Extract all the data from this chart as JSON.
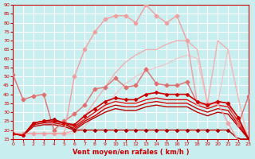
{
  "xlabel": "Vent moyen/en rafales ( km/h )",
  "background_color": "#c8eef0",
  "grid_color": "#ffffff",
  "x": [
    0,
    1,
    2,
    3,
    4,
    5,
    6,
    7,
    8,
    9,
    10,
    11,
    12,
    13,
    14,
    15,
    16,
    17,
    18,
    19,
    20,
    21,
    22,
    23
  ],
  "lines": [
    {
      "y": [
        18,
        18,
        18,
        18,
        18,
        18,
        50,
        65,
        75,
        82,
        84,
        84,
        80,
        90,
        84,
        80,
        84,
        70,
        35,
        35,
        35,
        24,
        14,
        14
      ],
      "color": "#f0a0a0",
      "lw": 1.0,
      "marker": "D",
      "ms": 2.5,
      "zorder": 5
    },
    {
      "y": [
        18,
        18,
        18,
        18,
        18,
        18,
        20,
        28,
        36,
        44,
        52,
        58,
        62,
        65,
        65,
        68,
        70,
        70,
        65,
        35,
        70,
        65,
        38,
        14
      ],
      "color": "#f0b0b0",
      "lw": 1.0,
      "marker": null,
      "ms": 0,
      "zorder": 2
    },
    {
      "y": [
        18,
        18,
        18,
        18,
        18,
        18,
        18,
        22,
        28,
        33,
        40,
        46,
        50,
        53,
        55,
        57,
        60,
        62,
        60,
        34,
        35,
        65,
        38,
        14
      ],
      "color": "#f5c0c0",
      "lw": 0.8,
      "marker": null,
      "ms": 0,
      "zorder": 2
    },
    {
      "y": [
        51,
        37,
        39,
        40,
        20,
        25,
        29,
        34,
        43,
        44,
        49,
        44,
        45,
        54,
        46,
        45,
        45,
        47,
        35,
        34,
        36,
        35,
        23,
        39
      ],
      "color": "#e07070",
      "lw": 1.0,
      "marker": "D",
      "ms": 2.5,
      "zorder": 4
    },
    {
      "y": [
        18,
        17,
        24,
        25,
        25,
        24,
        23,
        28,
        32,
        36,
        38,
        37,
        37,
        40,
        41,
        40,
        40,
        40,
        36,
        34,
        36,
        35,
        27,
        15
      ],
      "color": "#cc0000",
      "lw": 1.2,
      "marker": "D",
      "ms": 2.0,
      "zorder": 5
    },
    {
      "y": [
        18,
        17,
        24,
        25,
        25,
        24,
        22,
        26,
        30,
        34,
        36,
        35,
        35,
        37,
        38,
        37,
        37,
        37,
        34,
        32,
        34,
        33,
        25,
        15
      ],
      "color": "#dd1111",
      "lw": 1.0,
      "marker": null,
      "ms": 0,
      "zorder": 3
    },
    {
      "y": [
        18,
        17,
        23,
        24,
        24,
        23,
        21,
        25,
        28,
        32,
        34,
        33,
        33,
        35,
        36,
        35,
        35,
        35,
        32,
        30,
        32,
        31,
        23,
        15
      ],
      "color": "#cc0000",
      "lw": 1.0,
      "marker": null,
      "ms": 0,
      "zorder": 3
    },
    {
      "y": [
        18,
        17,
        22,
        23,
        23,
        22,
        20,
        24,
        27,
        30,
        32,
        31,
        31,
        33,
        34,
        33,
        33,
        33,
        30,
        28,
        30,
        29,
        22,
        15
      ],
      "color": "#bb0000",
      "lw": 1.0,
      "marker": null,
      "ms": 0,
      "zorder": 3
    },
    {
      "y": [
        18,
        17,
        24,
        25,
        26,
        24,
        20,
        20,
        20,
        20,
        20,
        20,
        20,
        20,
        20,
        20,
        20,
        20,
        20,
        20,
        20,
        20,
        15,
        15
      ],
      "color": "#aa0000",
      "lw": 1.0,
      "marker": "D",
      "ms": 2.0,
      "zorder": 4
    }
  ],
  "ylim": [
    15,
    90
  ],
  "yticks": [
    15,
    20,
    25,
    30,
    35,
    40,
    45,
    50,
    55,
    60,
    65,
    70,
    75,
    80,
    85,
    90
  ],
  "xlim": [
    0,
    23
  ],
  "xticks": [
    0,
    1,
    2,
    3,
    4,
    5,
    6,
    7,
    8,
    9,
    10,
    11,
    12,
    13,
    14,
    15,
    16,
    17,
    18,
    19,
    20,
    21,
    22,
    23
  ]
}
